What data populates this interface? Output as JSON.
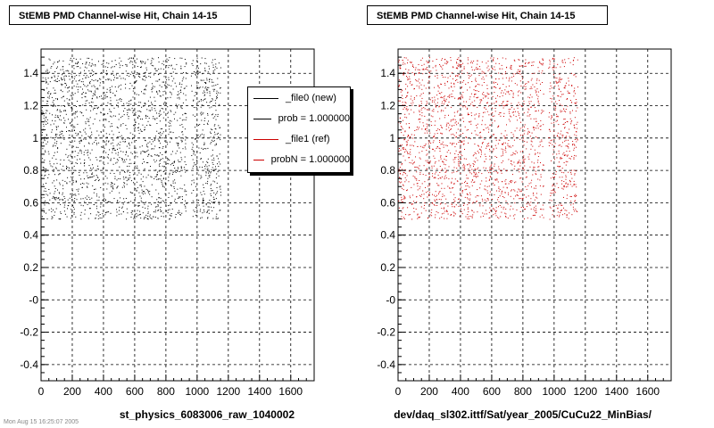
{
  "chart_data": [
    {
      "type": "scatter",
      "title": "StEMB PMD Channel-wise Hit, Chain 14-15",
      "xlabel": "st_physics_6083006_raw_1040002",
      "ylabel": "",
      "xlim": [
        0,
        1750
      ],
      "ylim": [
        -0.5,
        1.55
      ],
      "x_ticks": [
        "0",
        "200",
        "400",
        "600",
        "800",
        "1000",
        "1200",
        "1400",
        "1600"
      ],
      "y_ticks": [
        "-0.4",
        "-0.2",
        "-0",
        "0.2",
        "0.4",
        "0.6",
        "0.8",
        "1",
        "1.2",
        "1.4"
      ],
      "grid": true,
      "legend": {
        "placement": "top-right",
        "entries": [
          "_file0 (new)",
          "prob = 1.000000",
          "_file1 (ref)",
          "probN = 1.000000"
        ]
      },
      "series": [
        {
          "name": "_file0 (new)",
          "color": "#000000",
          "distribution": "uniform",
          "y_range": [
            0.5,
            1.5
          ],
          "x_ranges": [
            [
              0,
              930
            ],
            [
              960,
              1150
            ]
          ],
          "point_count": 2200
        }
      ]
    },
    {
      "type": "scatter",
      "title": "StEMB PMD Channel-wise Hit, Chain 14-15",
      "xlabel": "dev/daq_sl302.ittf/Sat/year_2005/CuCu22_MinBias/",
      "ylabel": "",
      "xlim": [
        0,
        1750
      ],
      "ylim": [
        -0.5,
        1.55
      ],
      "x_ticks": [
        "0",
        "200",
        "400",
        "600",
        "800",
        "1000",
        "1200",
        "1400",
        "1600"
      ],
      "y_ticks": [
        "-0.4",
        "-0.2",
        "-0",
        "0.2",
        "0.4",
        "0.6",
        "0.8",
        "1",
        "1.2",
        "1.4"
      ],
      "grid": true,
      "series": [
        {
          "name": "_file1 (ref)",
          "color": "#cc0000",
          "distribution": "uniform",
          "y_range": [
            0.5,
            1.5
          ],
          "x_ranges": [
            [
              0,
              930
            ],
            [
              960,
              1150
            ]
          ],
          "point_count": 2200
        }
      ]
    }
  ],
  "footer": "Mon Aug 15 16:25:07 2005"
}
